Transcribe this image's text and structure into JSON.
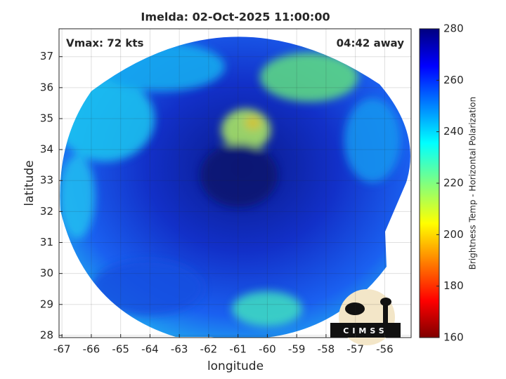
{
  "chart_data": {
    "type": "image",
    "title": "Imelda: 02-Oct-2025 11:00:00",
    "annotation_left": "Vmax: 72 kts",
    "annotation_right": "04:42 away",
    "x_label": "longitude",
    "y_label": "latitude",
    "xlim": [
      -67.1,
      -55.1
    ],
    "ylim": [
      27.93,
      37.9
    ],
    "xticks": [
      -67,
      -66,
      -65,
      -64,
      -63,
      -62,
      -61,
      -60,
      -59,
      -58,
      -57,
      -56
    ],
    "yticks": [
      28,
      29,
      30,
      31,
      32,
      33,
      34,
      35,
      36,
      37
    ],
    "grid": true,
    "colorbar": {
      "label": "Brightness Temp - Horizontal Polarization",
      "lim": [
        160,
        280
      ],
      "ticks": [
        160,
        180,
        200,
        220,
        240,
        260,
        280
      ]
    },
    "logo_text": "CIMSS"
  }
}
